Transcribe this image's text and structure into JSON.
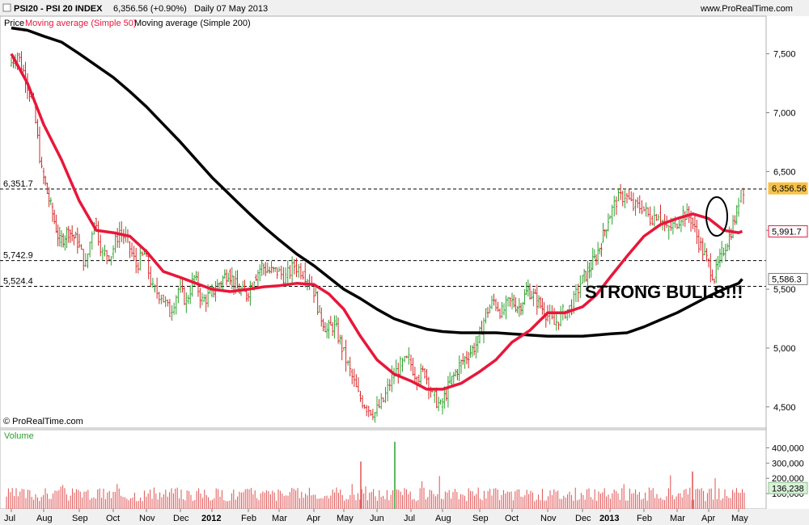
{
  "header": {
    "symbol": "PSI20 - PSI 20 INDEX",
    "last_change": "6,356.56 (+0.90%)",
    "period_date": "Daily  07 May 2013",
    "site": "www.ProRealTime.com"
  },
  "legend": {
    "price": "Price",
    "ma50": "Moving average (Simple 50)",
    "ma200": "Moving average (Simple 200)"
  },
  "copyright": "© ProRealTime.com",
  "annotation": "STRONG BULLS!!!",
  "colors": {
    "up": "#2ca02c",
    "down": "#d62728",
    "ma50": "#e8173a",
    "ma200": "#000000",
    "last_price_bg": "#f7c24a",
    "ma50_tag_border": "#e8173a",
    "volume_bar": "#e05050",
    "volume_last_bg": "#d9f2d9"
  },
  "chart_data": {
    "type": "line",
    "series_types": {
      "price": "bar (OHLC)",
      "ma50": "line",
      "ma200": "line"
    },
    "x_labels": [
      "Jul",
      "Aug",
      "Sep",
      "Oct",
      "Nov",
      "Dec",
      "2012",
      "Feb",
      "Mar",
      "Apr",
      "May",
      "Jun",
      "Jul",
      "Aug",
      "Sep",
      "Oct",
      "Nov",
      "Dec",
      "2013",
      "Feb",
      "Mar",
      "Apr",
      "May"
    ],
    "ylim": [
      4320,
      7820
    ],
    "yticks": [
      4500,
      5000,
      5500,
      6000,
      6500,
      7000,
      7500
    ],
    "ytick_labels": [
      "4,500",
      "5,000",
      "5,500",
      "6,000",
      "6,500",
      "7,000",
      "7,500"
    ],
    "hlines": [
      {
        "value": 6351.7,
        "label": "6,351.7"
      },
      {
        "value": 5742.9,
        "label": "5,742.9"
      },
      {
        "value": 5524.4,
        "label": "5,524.4"
      }
    ],
    "right_tags": [
      {
        "value": 6356.56,
        "label": "6,356.56",
        "kind": "last"
      },
      {
        "value": 5991.7,
        "label": "5,991.7",
        "kind": "ma50"
      },
      {
        "value": 5586.3,
        "label": "5,586.3",
        "kind": "ma200"
      }
    ],
    "price_close_path": [
      [
        "Jul",
        7400
      ],
      [
        "Jul",
        7500
      ],
      [
        "Jul",
        7300
      ],
      [
        "Jul",
        7050
      ],
      [
        "Aug",
        6500
      ],
      [
        "Aug",
        6200
      ],
      [
        "Aug",
        5900
      ],
      [
        "Aug",
        6000
      ],
      [
        "Sep",
        5900
      ],
      [
        "Sep",
        5700
      ],
      [
        "Sep",
        6100
      ],
      [
        "Sep",
        5800
      ],
      [
        "Oct",
        5800
      ],
      [
        "Oct",
        6000
      ],
      [
        "Oct",
        5900
      ],
      [
        "Oct",
        5700
      ],
      [
        "Nov",
        5800
      ],
      [
        "Nov",
        5500
      ],
      [
        "Nov",
        5450
      ],
      [
        "Nov",
        5300
      ],
      [
        "Dec",
        5500
      ],
      [
        "Dec",
        5400
      ],
      [
        "Dec",
        5600
      ],
      [
        "Dec",
        5400
      ],
      [
        "2012",
        5450
      ],
      [
        "2012",
        5550
      ],
      [
        "2012",
        5650
      ],
      [
        "2012",
        5500
      ],
      [
        "Feb",
        5450
      ],
      [
        "Feb",
        5600
      ],
      [
        "Feb",
        5700
      ],
      [
        "Feb",
        5650
      ],
      [
        "Mar",
        5650
      ],
      [
        "Mar",
        5600
      ],
      [
        "Mar",
        5700
      ],
      [
        "Mar",
        5650
      ],
      [
        "Apr",
        5550
      ],
      [
        "Apr",
        5300
      ],
      [
        "Apr",
        5150
      ],
      [
        "Apr",
        5200
      ],
      [
        "May",
        5000
      ],
      [
        "May",
        4800
      ],
      [
        "May",
        4600
      ],
      [
        "May",
        4500
      ],
      [
        "Jun",
        4450
      ],
      [
        "Jun",
        4550
      ],
      [
        "Jun",
        4750
      ],
      [
        "Jun",
        4850
      ],
      [
        "Jul",
        4900
      ],
      [
        "Jul",
        4750
      ],
      [
        "Jul",
        4800
      ],
      [
        "Jul",
        4600
      ],
      [
        "Aug",
        4500
      ],
      [
        "Aug",
        4700
      ],
      [
        "Aug",
        4850
      ],
      [
        "Aug",
        4950
      ],
      [
        "Sep",
        5050
      ],
      [
        "Sep",
        5300
      ],
      [
        "Sep",
        5400
      ],
      [
        "Sep",
        5300
      ],
      [
        "Oct",
        5400
      ],
      [
        "Oct",
        5350
      ],
      [
        "Oct",
        5500
      ],
      [
        "Oct",
        5400
      ],
      [
        "Nov",
        5300
      ],
      [
        "Nov",
        5200
      ],
      [
        "Nov",
        5300
      ],
      [
        "Nov",
        5350
      ],
      [
        "Dec",
        5550
      ],
      [
        "Dec",
        5650
      ],
      [
        "Dec",
        5750
      ],
      [
        "Dec",
        5900
      ],
      [
        "2013",
        6100
      ],
      [
        "2013",
        6250
      ],
      [
        "2013",
        6300
      ],
      [
        "2013",
        6200
      ],
      [
        "Feb",
        6200
      ],
      [
        "Feb",
        6100
      ],
      [
        "Feb",
        6150
      ],
      [
        "Feb",
        6000
      ],
      [
        "Mar",
        6050
      ],
      [
        "Mar",
        6150
      ],
      [
        "Mar",
        6100
      ],
      [
        "Mar",
        5900
      ],
      [
        "Apr",
        5750
      ],
      [
        "Apr",
        5600
      ],
      [
        "Apr",
        5800
      ],
      [
        "Apr",
        5950
      ],
      [
        "May",
        6150
      ],
      [
        "May",
        6250
      ],
      [
        "May",
        6356.56
      ]
    ],
    "ma50": [
      [
        "Jul",
        7500
      ],
      [
        "Jul",
        7250
      ],
      [
        "Aug",
        6900
      ],
      [
        "Aug",
        6600
      ],
      [
        "Sep",
        6250
      ],
      [
        "Sep",
        6000
      ],
      [
        "Oct",
        5980
      ],
      [
        "Oct",
        5950
      ],
      [
        "Nov",
        5820
      ],
      [
        "Nov",
        5650
      ],
      [
        "Dec",
        5600
      ],
      [
        "Dec",
        5550
      ],
      [
        "2012",
        5500
      ],
      [
        "2012",
        5480
      ],
      [
        "Feb",
        5500
      ],
      [
        "Feb",
        5520
      ],
      [
        "Mar",
        5530
      ],
      [
        "Mar",
        5550
      ],
      [
        "Apr",
        5540
      ],
      [
        "Apr",
        5460
      ],
      [
        "May",
        5330
      ],
      [
        "May",
        5100
      ],
      [
        "Jun",
        4900
      ],
      [
        "Jun",
        4780
      ],
      [
        "Jul",
        4720
      ],
      [
        "Jul",
        4650
      ],
      [
        "Aug",
        4650
      ],
      [
        "Aug",
        4700
      ],
      [
        "Sep",
        4800
      ],
      [
        "Sep",
        4900
      ],
      [
        "Oct",
        5050
      ],
      [
        "Oct",
        5150
      ],
      [
        "Nov",
        5300
      ],
      [
        "Nov",
        5300
      ],
      [
        "Dec",
        5350
      ],
      [
        "Dec",
        5450
      ],
      [
        "2013",
        5600
      ],
      [
        "2013",
        5780
      ],
      [
        "Feb",
        5950
      ],
      [
        "Feb",
        6050
      ],
      [
        "Mar",
        6100
      ],
      [
        "Mar",
        6140
      ],
      [
        "Apr",
        6100
      ],
      [
        "Apr",
        6000
      ],
      [
        "May",
        5980
      ],
      [
        "May",
        5991.7
      ]
    ],
    "ma200": [
      [
        "Jul",
        7720
      ],
      [
        "Jul",
        7700
      ],
      [
        "Aug",
        7650
      ],
      [
        "Aug",
        7600
      ],
      [
        "Sep",
        7500
      ],
      [
        "Sep",
        7400
      ],
      [
        "Oct",
        7300
      ],
      [
        "Oct",
        7180
      ],
      [
        "Nov",
        7050
      ],
      [
        "Nov",
        6900
      ],
      [
        "Dec",
        6750
      ],
      [
        "Dec",
        6600
      ],
      [
        "2012",
        6450
      ],
      [
        "2012",
        6300
      ],
      [
        "Feb",
        6150
      ],
      [
        "Feb",
        6030
      ],
      [
        "Mar",
        5920
      ],
      [
        "Mar",
        5800
      ],
      [
        "Apr",
        5700
      ],
      [
        "Apr",
        5600
      ],
      [
        "May",
        5500
      ],
      [
        "May",
        5420
      ],
      [
        "Jun",
        5330
      ],
      [
        "Jun",
        5250
      ],
      [
        "Jul",
        5200
      ],
      [
        "Jul",
        5160
      ],
      [
        "Aug",
        5140
      ],
      [
        "Aug",
        5130
      ],
      [
        "Sep",
        5130
      ],
      [
        "Sep",
        5130
      ],
      [
        "Oct",
        5120
      ],
      [
        "Oct",
        5110
      ],
      [
        "Nov",
        5100
      ],
      [
        "Nov",
        5100
      ],
      [
        "Dec",
        5100
      ],
      [
        "Dec",
        5110
      ],
      [
        "2013",
        5120
      ],
      [
        "2013",
        5130
      ],
      [
        "Feb",
        5180
      ],
      [
        "Feb",
        5240
      ],
      [
        "Mar",
        5300
      ],
      [
        "Mar",
        5370
      ],
      [
        "Apr",
        5440
      ],
      [
        "Apr",
        5500
      ],
      [
        "May",
        5550
      ],
      [
        "May",
        5586.3
      ]
    ],
    "volume": {
      "label": "Volume",
      "ylim": [
        0,
        450000
      ],
      "yticks": [
        100000,
        200000,
        300000,
        400000
      ],
      "ytick_labels": [
        "100,000",
        "200,000",
        "300,000",
        "400,000"
      ],
      "last_label": "136,238",
      "last_value": 136238,
      "peaks": [
        {
          "x_label": "Jun",
          "value": 310000
        },
        {
          "x_label": "Jul",
          "value": 440000
        },
        {
          "x_label": "Apr",
          "value": 245000
        }
      ]
    }
  }
}
